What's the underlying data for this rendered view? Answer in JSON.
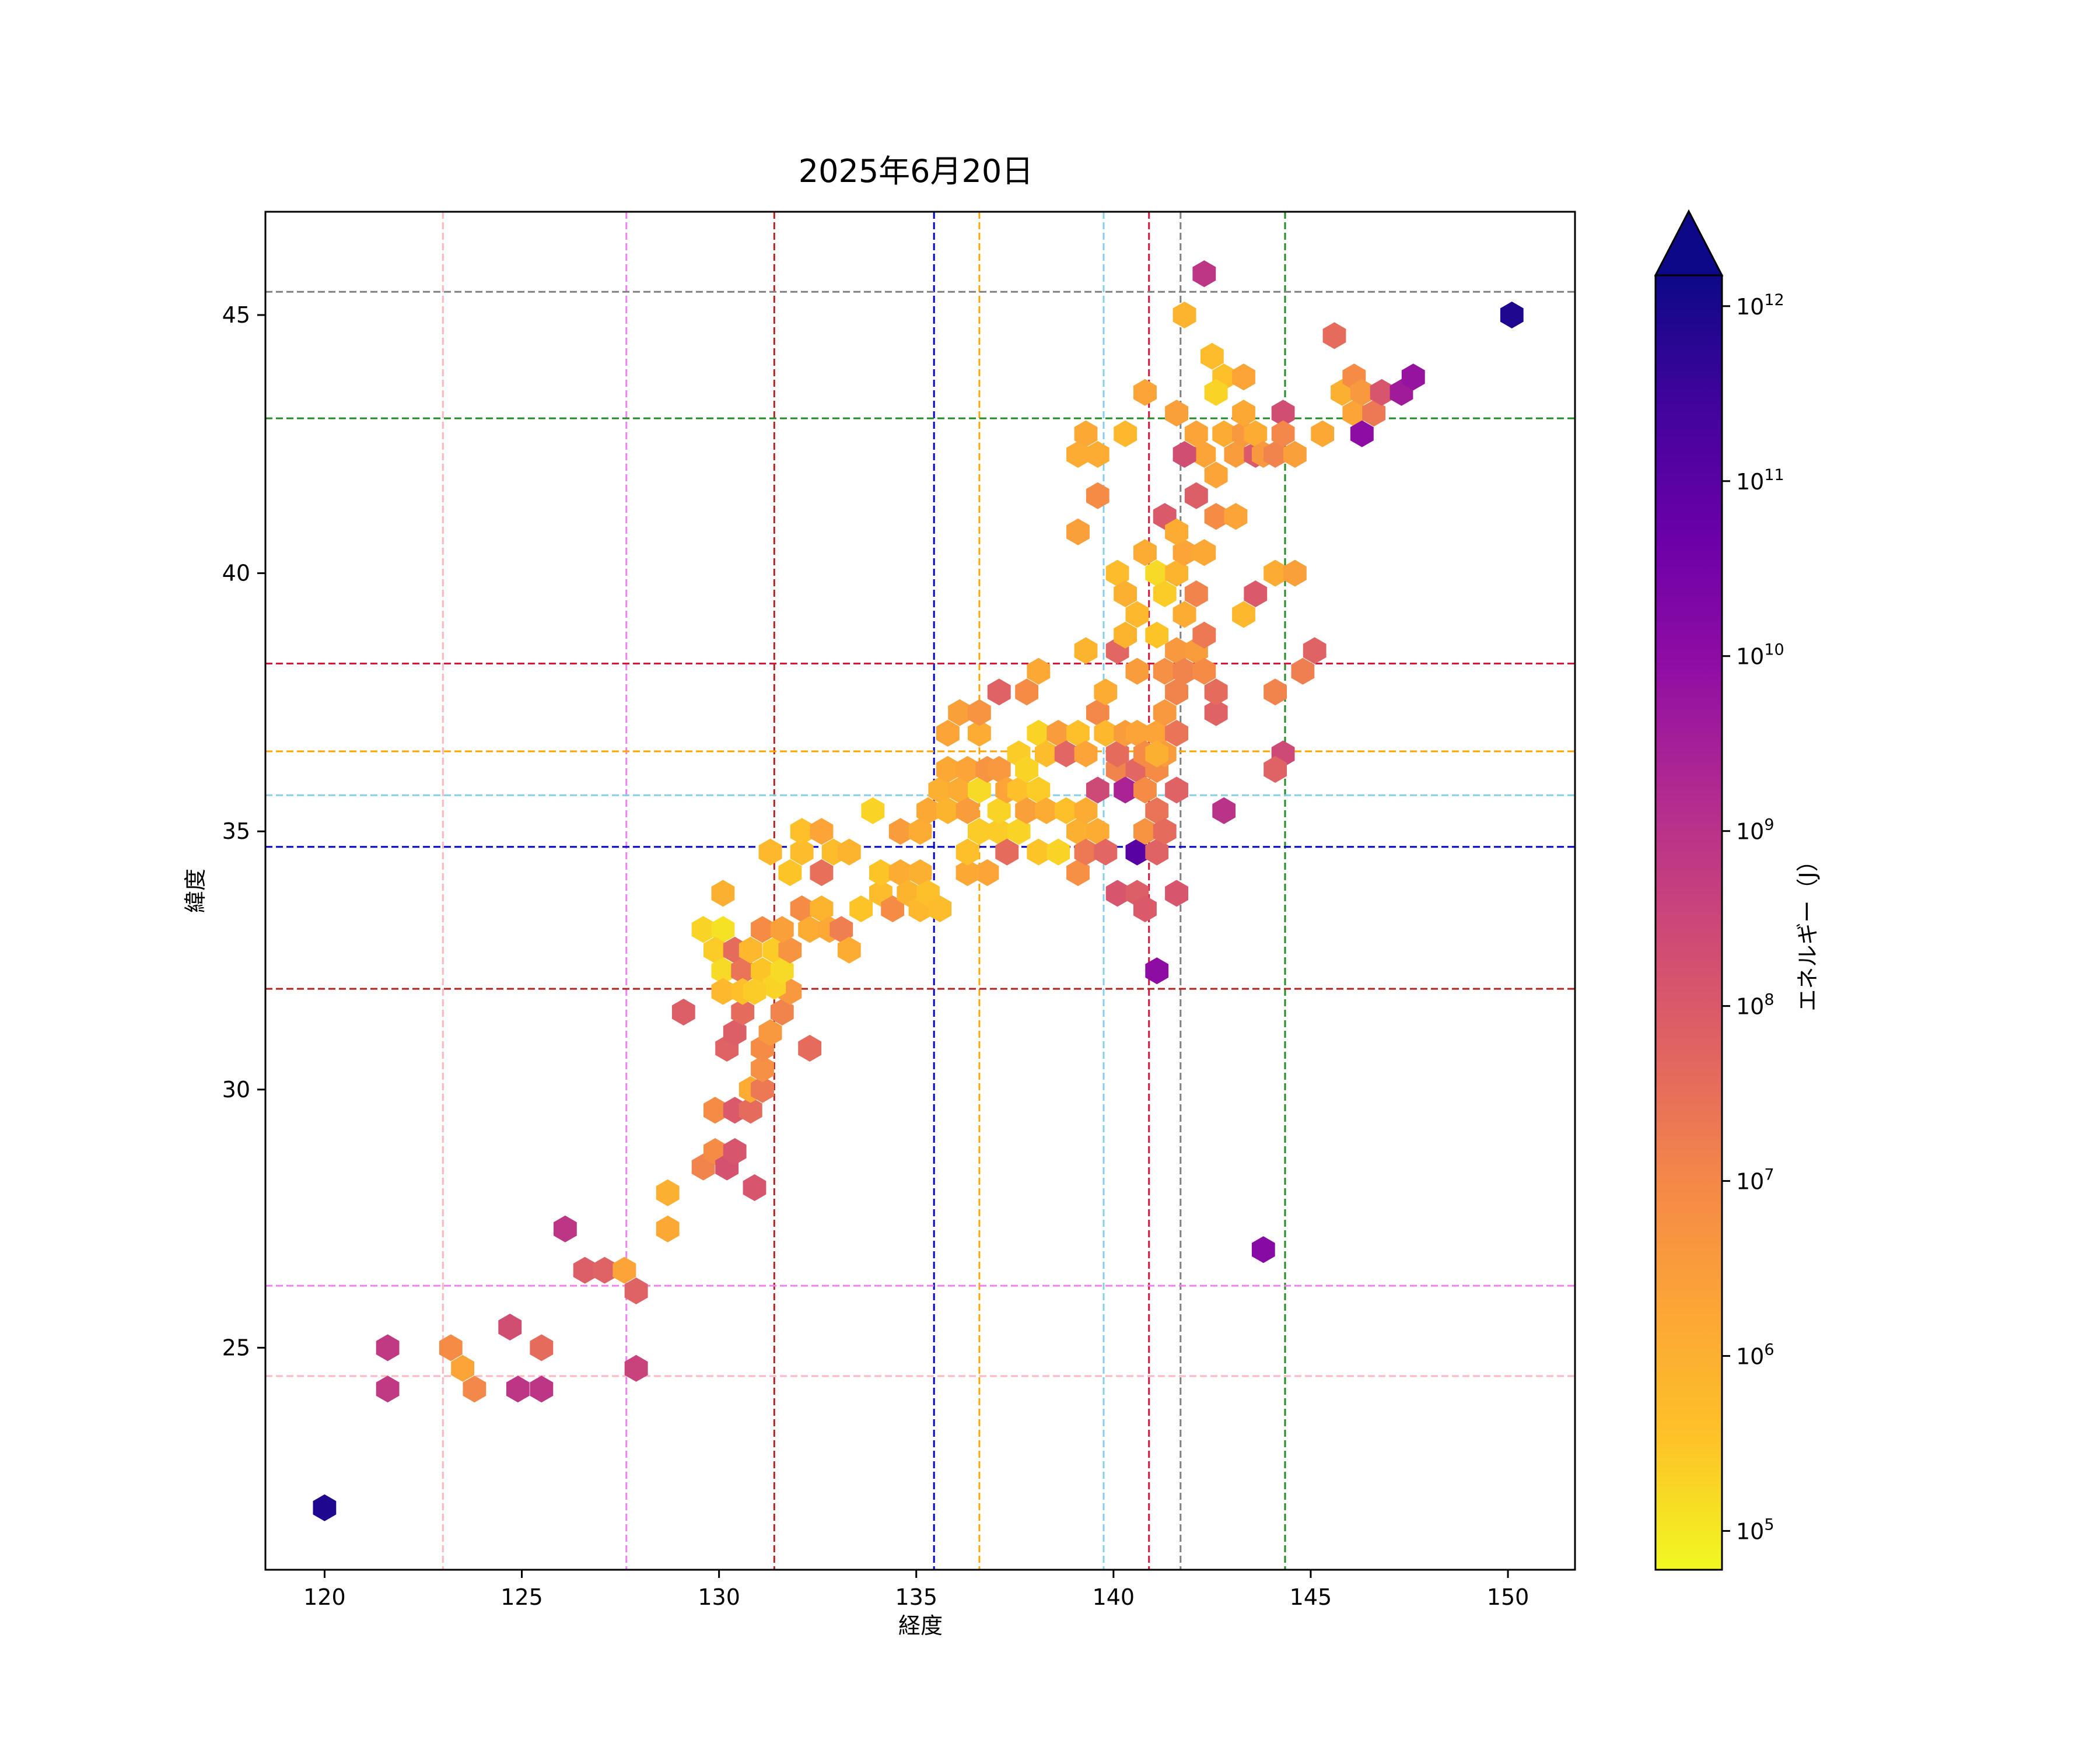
{
  "chart_data": {
    "type": "hexbin",
    "title": "2025年6月20日",
    "xlabel": "経度",
    "ylabel": "緯度",
    "xlim": [
      118.5,
      151.7
    ],
    "ylim": [
      20.7,
      47.0
    ],
    "xticks": [
      120,
      125,
      130,
      135,
      140,
      145,
      150
    ],
    "yticks": [
      25,
      30,
      35,
      40,
      45
    ],
    "colorbar": {
      "label": "エネルギー（J）",
      "scale": "log",
      "colormap": "plasma_r",
      "range": [
        60000,
        1500000000000
      ],
      "extend": "max",
      "ticks": [
        {
          "value": 100000,
          "base": "10",
          "exp": "5"
        },
        {
          "value": 1000000,
          "base": "10",
          "exp": "6"
        },
        {
          "value": 10000000,
          "base": "10",
          "exp": "7"
        },
        {
          "value": 100000000,
          "base": "10",
          "exp": "8"
        },
        {
          "value": 1000000000,
          "base": "10",
          "exp": "9"
        },
        {
          "value": 10000000000,
          "base": "10",
          "exp": "10"
        },
        {
          "value": 100000000000,
          "base": "10",
          "exp": "11"
        },
        {
          "value": 1000000000000,
          "base": "10",
          "exp": "12"
        }
      ]
    },
    "reference_lines": {
      "vertical": [
        {
          "x": 123.0,
          "color": "#ffb6c1"
        },
        {
          "x": 127.65,
          "color": "#ee82ee"
        },
        {
          "x": 131.4,
          "color": "#b22222"
        },
        {
          "x": 135.45,
          "color": "#0000cd"
        },
        {
          "x": 136.6,
          "color": "#ffa500"
        },
        {
          "x": 139.75,
          "color": "#87ceeb"
        },
        {
          "x": 140.9,
          "color": "#dc143c"
        },
        {
          "x": 141.7,
          "color": "#808080"
        },
        {
          "x": 144.35,
          "color": "#228b22"
        }
      ],
      "horizontal": [
        {
          "y": 45.45,
          "color": "#808080"
        },
        {
          "y": 43.0,
          "color": "#228b22"
        },
        {
          "y": 38.25,
          "color": "#dc143c"
        },
        {
          "y": 36.55,
          "color": "#ffa500"
        },
        {
          "y": 35.7,
          "color": "#87ceeb"
        },
        {
          "y": 34.7,
          "color": "#0000cd"
        },
        {
          "y": 31.95,
          "color": "#b22222"
        },
        {
          "y": 26.2,
          "color": "#ee82ee"
        },
        {
          "y": 24.45,
          "color": "#ffb6c1"
        }
      ]
    },
    "points": [
      [
        120.0,
        21.9,
        11.9
      ],
      [
        121.6,
        25.0,
        8.8
      ],
      [
        121.6,
        24.2,
        8.8
      ],
      [
        123.2,
        25.0,
        6.9
      ],
      [
        123.5,
        24.6,
        6.3
      ],
      [
        123.8,
        24.2,
        7.0
      ],
      [
        124.7,
        25.4,
        8.3
      ],
      [
        124.9,
        24.2,
        8.9
      ],
      [
        125.5,
        24.2,
        8.9
      ],
      [
        125.5,
        25.0,
        7.6
      ],
      [
        126.1,
        27.3,
        8.9
      ],
      [
        126.6,
        26.5,
        7.9
      ],
      [
        127.1,
        26.5,
        7.8
      ],
      [
        127.6,
        26.5,
        6.3
      ],
      [
        127.9,
        26.1,
        7.8
      ],
      [
        127.9,
        24.6,
        8.6
      ],
      [
        128.7,
        28.0,
        6.0
      ],
      [
        128.7,
        27.3,
        6.2
      ],
      [
        129.1,
        31.5,
        7.9
      ],
      [
        129.6,
        28.5,
        7.1
      ],
      [
        129.9,
        28.8,
        6.9
      ],
      [
        129.9,
        29.6,
        6.9
      ],
      [
        130.2,
        28.5,
        8.2
      ],
      [
        130.4,
        28.8,
        8.1
      ],
      [
        130.4,
        29.6,
        8.0
      ],
      [
        130.8,
        29.6,
        7.6
      ],
      [
        130.8,
        30.0,
        6.1
      ],
      [
        130.9,
        28.1,
        8.1
      ],
      [
        131.1,
        30.0,
        7.3
      ],
      [
        131.1,
        30.4,
        6.8
      ],
      [
        131.1,
        30.8,
        6.9
      ],
      [
        130.2,
        30.8,
        7.8
      ],
      [
        130.4,
        31.1,
        7.9
      ],
      [
        130.6,
        31.5,
        7.6
      ],
      [
        131.3,
        31.1,
        6.6
      ],
      [
        131.6,
        31.5,
        7.1
      ],
      [
        131.8,
        31.9,
        6.6
      ],
      [
        132.3,
        30.8,
        7.6
      ],
      [
        129.6,
        33.1,
        5.3
      ],
      [
        130.1,
        33.1,
        5.1
      ],
      [
        129.9,
        32.7,
        5.4
      ],
      [
        130.1,
        32.3,
        5.2
      ],
      [
        130.4,
        32.7,
        7.6
      ],
      [
        130.6,
        32.3,
        7.4
      ],
      [
        130.8,
        32.7,
        5.8
      ],
      [
        131.1,
        32.3,
        5.5
      ],
      [
        131.4,
        32.0,
        5.3
      ],
      [
        131.4,
        32.7,
        5.4
      ],
      [
        131.6,
        32.3,
        5.2
      ],
      [
        131.8,
        32.7,
        6.7
      ],
      [
        131.1,
        33.1,
        6.9
      ],
      [
        131.6,
        33.1,
        6.4
      ],
      [
        132.1,
        33.5,
        6.9
      ],
      [
        132.3,
        33.1,
        6.1
      ],
      [
        132.6,
        33.5,
        5.9
      ],
      [
        132.8,
        33.1,
        6.2
      ],
      [
        133.1,
        33.1,
        7.2
      ],
      [
        133.3,
        32.7,
        6.1
      ],
      [
        130.1,
        31.9,
        5.8
      ],
      [
        130.6,
        31.9,
        5.6
      ],
      [
        130.9,
        31.9,
        5.4
      ],
      [
        130.1,
        33.8,
        6.0
      ],
      [
        131.3,
        34.6,
        5.8
      ],
      [
        131.8,
        34.2,
        5.5
      ],
      [
        132.1,
        34.6,
        5.7
      ],
      [
        132.1,
        35.0,
        5.6
      ],
      [
        132.6,
        35.0,
        6.3
      ],
      [
        132.6,
        34.2,
        7.5
      ],
      [
        132.9,
        34.6,
        5.7
      ],
      [
        133.3,
        34.6,
        5.9
      ],
      [
        133.6,
        33.5,
        5.5
      ],
      [
        133.9,
        35.4,
        5.3
      ],
      [
        134.1,
        33.8,
        5.7
      ],
      [
        134.1,
        34.2,
        5.5
      ],
      [
        134.4,
        33.5,
        6.9
      ],
      [
        134.6,
        34.2,
        6.1
      ],
      [
        134.6,
        35.0,
        6.5
      ],
      [
        134.8,
        33.8,
        5.9
      ],
      [
        135.1,
        33.5,
        5.8
      ],
      [
        135.1,
        34.2,
        6.0
      ],
      [
        135.3,
        33.8,
        5.6
      ],
      [
        135.6,
        33.5,
        5.7
      ],
      [
        135.1,
        35.0,
        6.1
      ],
      [
        135.3,
        35.4,
        6.2
      ],
      [
        135.6,
        35.8,
        6.0
      ],
      [
        135.8,
        35.4,
        5.9
      ],
      [
        135.8,
        36.2,
        6.2
      ],
      [
        135.8,
        36.9,
        6.3
      ],
      [
        136.1,
        37.3,
        6.4
      ],
      [
        136.1,
        35.8,
        6.1
      ],
      [
        136.3,
        35.4,
        6.5
      ],
      [
        136.3,
        36.2,
        6.3
      ],
      [
        136.6,
        35.0,
        5.4
      ],
      [
        136.6,
        35.8,
        5.2
      ],
      [
        136.6,
        36.9,
        6.1
      ],
      [
        136.6,
        37.3,
        6.7
      ],
      [
        136.8,
        36.2,
        6.7
      ],
      [
        136.8,
        34.2,
        6.3
      ],
      [
        136.3,
        34.2,
        6.2
      ],
      [
        136.3,
        34.6,
        5.6
      ],
      [
        137.1,
        35.0,
        5.4
      ],
      [
        137.1,
        35.4,
        5.3
      ],
      [
        137.1,
        36.2,
        6.6
      ],
      [
        137.1,
        37.7,
        7.8
      ],
      [
        137.3,
        34.6,
        7.6
      ],
      [
        137.3,
        35.8,
        6.3
      ],
      [
        137.6,
        35.0,
        5.3
      ],
      [
        137.6,
        35.8,
        5.6
      ],
      [
        137.6,
        36.5,
        5.4
      ],
      [
        137.8,
        36.2,
        5.3
      ],
      [
        137.8,
        37.7,
        6.9
      ],
      [
        137.8,
        35.4,
        6.4
      ],
      [
        138.1,
        34.6,
        5.5
      ],
      [
        138.1,
        35.8,
        5.4
      ],
      [
        138.1,
        36.9,
        5.3
      ],
      [
        138.1,
        38.1,
        6.2
      ],
      [
        138.3,
        35.4,
        6.1
      ],
      [
        138.3,
        36.5,
        5.7
      ],
      [
        138.6,
        34.6,
        5.3
      ],
      [
        138.6,
        36.9,
        6.5
      ],
      [
        138.8,
        36.5,
        7.7
      ],
      [
        138.8,
        35.4,
        5.6
      ],
      [
        139.1,
        35.0,
        6.0
      ],
      [
        139.1,
        36.9,
        5.6
      ],
      [
        139.1,
        34.2,
        6.8
      ],
      [
        139.3,
        34.6,
        7.3
      ],
      [
        139.3,
        35.4,
        6.1
      ],
      [
        139.3,
        36.5,
        6.3
      ],
      [
        139.6,
        35.0,
        6.1
      ],
      [
        139.6,
        37.3,
        7.0
      ],
      [
        139.6,
        35.8,
        8.4
      ],
      [
        139.8,
        36.9,
        5.8
      ],
      [
        139.8,
        37.7,
        6.1
      ],
      [
        139.8,
        34.6,
        7.7
      ],
      [
        140.1,
        36.2,
        7.1
      ],
      [
        140.1,
        36.5,
        7.6
      ],
      [
        140.1,
        33.8,
        8.1
      ],
      [
        140.3,
        35.8,
        9.4
      ],
      [
        140.3,
        36.9,
        6.5
      ],
      [
        140.6,
        34.6,
        11.0
      ],
      [
        140.6,
        33.8,
        7.9
      ],
      [
        140.6,
        36.2,
        7.7
      ],
      [
        140.6,
        36.9,
        6.3
      ],
      [
        140.8,
        33.5,
        8.0
      ],
      [
        140.8,
        35.0,
        6.7
      ],
      [
        140.8,
        36.5,
        6.9
      ],
      [
        141.1,
        34.6,
        7.8
      ],
      [
        141.1,
        35.4,
        7.4
      ],
      [
        141.1,
        36.2,
        6.9
      ],
      [
        141.1,
        36.9,
        6.3
      ],
      [
        141.3,
        35.0,
        7.6
      ],
      [
        141.3,
        36.5,
        6.5
      ],
      [
        141.3,
        37.3,
        6.6
      ],
      [
        141.6,
        35.8,
        7.8
      ],
      [
        141.6,
        36.9,
        7.4
      ],
      [
        141.6,
        37.7,
        7.1
      ],
      [
        141.6,
        33.8,
        8.1
      ],
      [
        141.1,
        32.3,
        10.0
      ],
      [
        139.3,
        38.5,
        5.9
      ],
      [
        140.1,
        38.5,
        7.7
      ],
      [
        140.1,
        40.0,
        5.7
      ],
      [
        140.3,
        39.6,
        6.0
      ],
      [
        140.3,
        38.8,
        5.9
      ],
      [
        140.6,
        38.1,
        6.5
      ],
      [
        140.6,
        39.2,
        5.8
      ],
      [
        140.8,
        40.4,
        6.1
      ],
      [
        141.1,
        40.0,
        5.2
      ],
      [
        141.1,
        38.8,
        5.5
      ],
      [
        141.3,
        38.1,
        6.8
      ],
      [
        141.3,
        39.6,
        5.4
      ],
      [
        141.6,
        38.5,
        6.6
      ],
      [
        141.6,
        40.0,
        5.9
      ],
      [
        141.8,
        38.1,
        7.1
      ],
      [
        141.8,
        39.2,
        6.1
      ],
      [
        141.8,
        40.4,
        6.3
      ],
      [
        142.1,
        38.5,
        6.5
      ],
      [
        142.1,
        39.6,
        7.1
      ],
      [
        142.3,
        38.8,
        7.3
      ],
      [
        142.3,
        38.1,
        6.9
      ],
      [
        142.3,
        40.4,
        6.2
      ],
      [
        142.6,
        37.3,
        7.8
      ],
      [
        142.6,
        37.7,
        7.6
      ],
      [
        140.8,
        35.8,
        6.9
      ],
      [
        141.1,
        36.5,
        6.0
      ],
      [
        141.3,
        41.1,
        8.0
      ],
      [
        141.6,
        40.8,
        6.1
      ],
      [
        142.1,
        41.5,
        7.9
      ],
      [
        142.3,
        42.3,
        6.3
      ],
      [
        142.6,
        41.9,
        6.3
      ],
      [
        142.6,
        41.1,
        6.9
      ],
      [
        142.8,
        42.7,
        6.1
      ],
      [
        143.1,
        42.3,
        6.5
      ],
      [
        143.1,
        41.1,
        6.3
      ],
      [
        143.3,
        42.7,
        6.6
      ],
      [
        143.3,
        43.1,
        6.2
      ],
      [
        143.6,
        42.3,
        8.0
      ],
      [
        143.6,
        42.7,
        6.1
      ],
      [
        143.8,
        42.3,
        6.6
      ],
      [
        144.1,
        42.3,
        7.1
      ],
      [
        144.3,
        43.1,
        8.3
      ],
      [
        144.3,
        42.7,
        7.0
      ],
      [
        144.6,
        42.3,
        6.4
      ],
      [
        141.8,
        42.3,
        8.3
      ],
      [
        142.1,
        42.7,
        6.3
      ],
      [
        141.6,
        43.1,
        6.4
      ],
      [
        140.8,
        43.5,
        6.3
      ],
      [
        140.3,
        42.7,
        5.8
      ],
      [
        139.1,
        42.3,
        6.1
      ],
      [
        139.3,
        42.7,
        6.2
      ],
      [
        139.6,
        42.3,
        6.1
      ],
      [
        139.6,
        41.5,
        6.9
      ],
      [
        139.1,
        40.8,
        6.4
      ],
      [
        141.8,
        45.0,
        5.9
      ],
      [
        142.3,
        45.8,
        8.9
      ],
      [
        142.5,
        44.2,
        5.7
      ],
      [
        142.8,
        43.8,
        5.6
      ],
      [
        142.6,
        43.5,
        5.3
      ],
      [
        143.3,
        43.8,
        6.3
      ],
      [
        143.3,
        39.2,
        5.8
      ],
      [
        143.6,
        39.6,
        8.0
      ],
      [
        144.1,
        37.7,
        7.1
      ],
      [
        144.1,
        40.0,
        6.1
      ],
      [
        144.6,
        40.0,
        6.4
      ],
      [
        144.3,
        36.5,
        8.4
      ],
      [
        144.1,
        36.2,
        7.8
      ],
      [
        144.8,
        38.1,
        7.2
      ],
      [
        145.1,
        38.5,
        7.8
      ],
      [
        142.8,
        35.4,
        9.0
      ],
      [
        143.8,
        26.9,
        10.1
      ],
      [
        145.6,
        44.6,
        7.6
      ],
      [
        145.8,
        43.5,
        6.0
      ],
      [
        145.3,
        42.7,
        6.2
      ],
      [
        146.1,
        43.8,
        6.9
      ],
      [
        146.1,
        43.1,
        6.3
      ],
      [
        146.3,
        43.5,
        6.6
      ],
      [
        146.3,
        42.7,
        10.0
      ],
      [
        146.6,
        43.1,
        7.3
      ],
      [
        146.8,
        43.5,
        8.1
      ],
      [
        147.3,
        43.5,
        9.6
      ],
      [
        147.6,
        43.8,
        9.8
      ],
      [
        150.1,
        45.0,
        11.9
      ]
    ]
  }
}
